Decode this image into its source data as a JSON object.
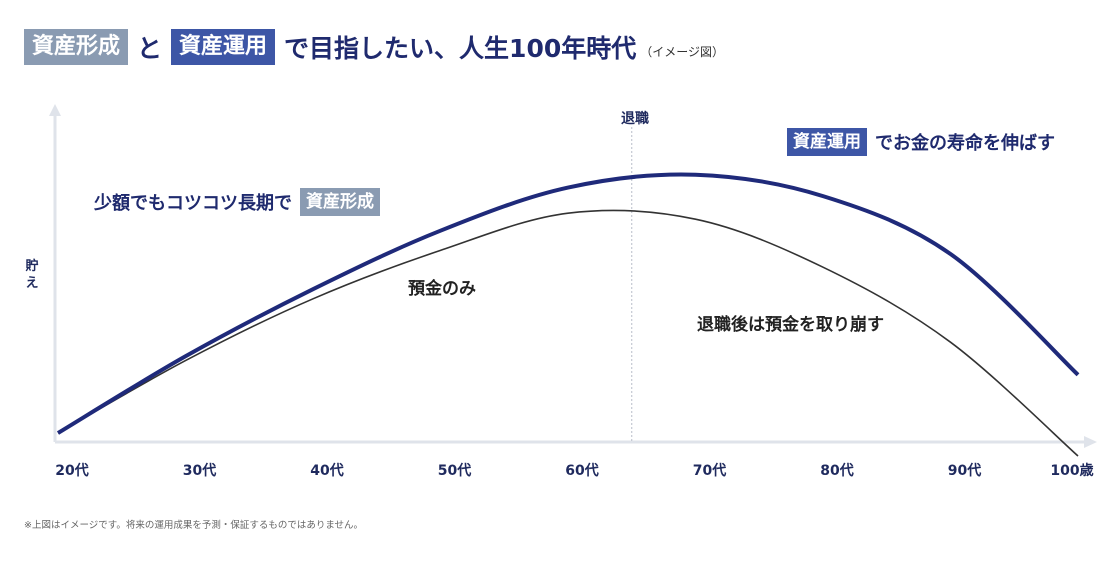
{
  "title": {
    "tag1": "資産形成",
    "connector": "と",
    "tag2": "資産運用",
    "text": "で目指したい、人生100年時代",
    "note": "（イメージ図）"
  },
  "retirement_label": "退職",
  "annotations": {
    "right_tag": "資産運用",
    "right_text": "でお金の寿命を伸ばす",
    "left_text": "少額でもコツコツ長期で",
    "left_tag": "資産形成",
    "deposit_only": "預金のみ",
    "after_retirement": "退職後は預金を取り崩す"
  },
  "ylabel": "貯え",
  "footnote": "※上図はイメージです。将来の運用成果を予測・保証するものではありません。",
  "colors": {
    "navy": "#1f2a7a",
    "dark_line": "#333333",
    "axis": "#dfe3ea",
    "tag_gray": "#8a9bb2",
    "tag_navy": "#3d56a6"
  },
  "chart_data": {
    "type": "line",
    "x": [
      "20代",
      "30代",
      "40代",
      "50代",
      "60代",
      "70代",
      "80代",
      "90代",
      "100歳"
    ],
    "xlabel": "",
    "ylabel": "貯え",
    "retirement_marker": 4.5,
    "series": [
      {
        "values": [
          0,
          0.233,
          0.437,
          0.615,
          0.746,
          0.785,
          0.72,
          0.544,
          0.177
        ]
      },
      {
        "values": [
          0,
          0.22,
          0.408,
          0.555,
          0.668,
          0.65,
          0.504,
          0.276,
          -0.07
        ]
      }
    ],
    "ylim": [
      0,
      1
    ]
  }
}
